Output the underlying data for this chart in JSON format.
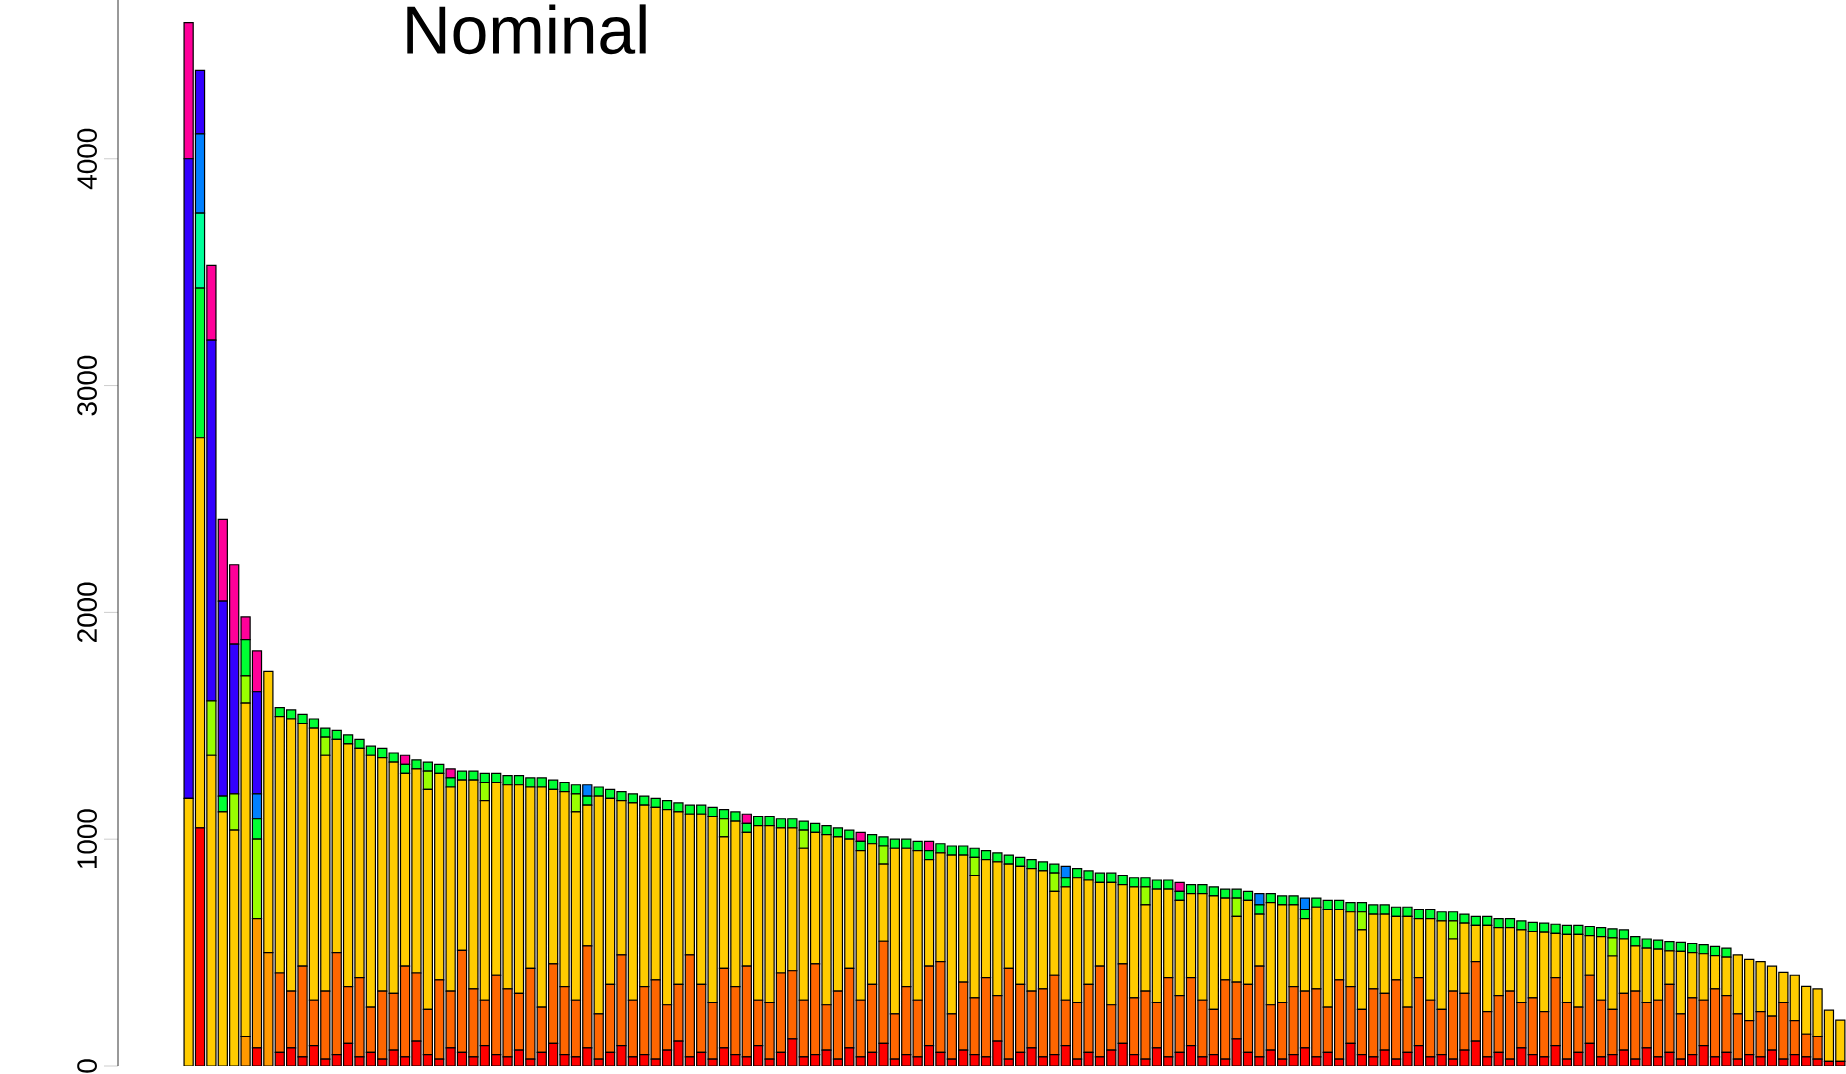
{
  "chart_data": {
    "type": "bar",
    "title": "Nominal",
    "stacked": true,
    "tick_labels": "y",
    "categories": [
      null,
      null,
      null,
      null,
      null,
      null,
      null,
      null,
      null,
      null,
      null,
      null,
      null,
      null,
      null,
      null,
      null,
      null,
      null,
      null,
      null,
      null,
      null,
      null,
      null,
      null,
      null,
      null,
      null,
      null,
      null,
      null,
      null,
      null,
      null,
      null,
      null,
      null,
      null,
      null,
      null,
      null,
      null,
      null,
      null,
      null,
      null,
      null,
      null,
      null,
      null,
      null,
      null,
      null,
      null,
      null,
      null,
      null,
      null,
      null,
      null,
      null,
      null,
      null,
      null,
      null,
      null,
      null,
      null,
      null,
      null,
      null,
      null,
      null,
      null,
      null,
      null,
      null,
      null,
      null,
      null,
      null,
      null,
      null,
      null,
      null,
      null,
      null,
      null,
      null,
      null,
      null,
      null,
      null,
      null,
      null,
      null,
      null,
      null,
      null,
      null,
      null,
      null,
      null,
      null,
      null,
      null,
      null,
      null,
      null,
      null,
      null,
      null,
      null,
      null,
      null,
      null,
      null,
      null,
      null,
      null,
      null,
      null,
      null,
      null,
      null,
      null,
      null,
      null,
      null,
      null,
      null,
      null,
      null,
      null,
      null,
      null,
      null,
      null,
      null,
      null,
      null,
      null,
      null,
      null,
      null
    ],
    "ylim": [
      0,
      4700
    ],
    "yticks": [
      0,
      1000,
      2000,
      3000,
      4000
    ],
    "series": [
      {
        "color": "#ff0000",
        "values": [
          0,
          1050,
          0,
          0,
          0,
          0,
          80,
          0,
          60,
          80,
          40,
          90,
          30,
          50,
          100,
          40,
          60,
          30,
          70,
          40,
          110,
          50,
          30,
          80,
          60,
          40,
          90,
          50,
          40,
          70,
          30,
          60,
          100,
          50,
          40,
          80,
          30,
          60,
          90,
          40,
          50,
          30,
          70,
          110,
          40,
          60,
          30,
          80,
          50,
          40,
          90,
          30,
          60,
          120,
          40,
          50,
          70,
          30,
          80,
          40,
          60,
          100,
          30,
          50,
          40,
          90,
          60,
          30,
          70,
          50,
          40,
          110,
          30,
          60,
          80,
          40,
          50,
          90,
          30,
          60,
          40,
          70,
          100,
          50,
          30,
          80,
          40,
          60,
          90,
          40,
          50,
          30,
          120,
          60,
          40,
          70,
          30,
          50,
          80,
          40,
          60,
          30,
          100,
          50,
          40,
          70,
          30,
          60,
          90,
          40,
          50,
          30,
          70,
          110,
          40,
          60,
          30,
          80,
          50,
          40,
          90,
          30,
          60,
          100,
          40,
          50,
          70,
          30,
          80,
          40,
          60,
          30,
          50,
          90,
          40,
          60,
          30,
          50,
          40,
          70,
          30,
          50,
          40,
          30,
          20,
          20
        ]
      },
      {
        "color": "#ff6600",
        "values": [
          0,
          0,
          0,
          0,
          0,
          0,
          0,
          0,
          350,
          250,
          400,
          200,
          300,
          450,
          250,
          350,
          200,
          300,
          250,
          400,
          300,
          200,
          350,
          250,
          450,
          300,
          200,
          350,
          300,
          250,
          400,
          200,
          350,
          300,
          250,
          450,
          200,
          300,
          400,
          250,
          300,
          350,
          200,
          250,
          450,
          300,
          250,
          350,
          300,
          400,
          200,
          250,
          350,
          300,
          250,
          400,
          200,
          300,
          350,
          250,
          300,
          450,
          200,
          300,
          250,
          350,
          400,
          200,
          300,
          250,
          350,
          200,
          400,
          300,
          250,
          300,
          350,
          200,
          250,
          300,
          400,
          200,
          350,
          250,
          300,
          200,
          350,
          250,
          300,
          250,
          200,
          350,
          250,
          300,
          400,
          200,
          250,
          300,
          250,
          300,
          200,
          350,
          250,
          200,
          300,
          250,
          350,
          200,
          300,
          250,
          200,
          300,
          250,
          350,
          200,
          250,
          300,
          200,
          250,
          200,
          300,
          250,
          200,
          300,
          250,
          200,
          250,
          300,
          200,
          250,
          300,
          200,
          250,
          200,
          300,
          250,
          200,
          150,
          200,
          150,
          250,
          150,
          100,
          100,
          0,
          0
        ]
      },
      {
        "color": "#ff9900",
        "values": [
          0,
          0,
          0,
          0,
          0,
          130,
          570,
          500,
          0,
          0,
          0,
          0,
          0,
          0,
          0,
          0,
          0,
          0,
          0,
          0,
          0,
          0,
          0,
          0,
          0,
          0,
          0,
          0,
          0,
          0,
          0,
          0,
          0,
          0,
          0,
          0,
          0,
          0,
          0,
          0,
          0,
          0,
          0,
          0,
          0,
          0,
          0,
          0,
          0,
          0,
          0,
          0,
          0,
          0,
          0,
          0,
          0,
          0,
          0,
          0,
          0,
          0,
          0,
          0,
          0,
          0,
          0,
          0,
          0,
          0,
          0,
          0,
          0,
          0,
          0,
          0,
          0,
          0,
          0,
          0,
          0,
          0,
          0,
          0,
          0,
          0,
          0,
          0,
          0,
          0,
          0,
          0,
          0,
          0,
          0,
          0,
          0,
          0,
          0,
          0,
          0,
          0,
          0,
          0,
          0,
          0,
          0,
          0,
          0,
          0,
          0,
          0,
          0,
          0,
          0,
          0,
          0,
          0,
          0,
          0,
          0,
          0,
          0,
          0,
          0,
          0,
          0,
          0,
          0,
          0,
          0,
          0,
          0,
          0,
          0,
          0,
          0,
          0,
          0,
          0,
          0,
          0,
          0,
          0,
          0,
          0
        ]
      },
      {
        "color": "#ffcc00",
        "values": [
          1180,
          1720,
          1370,
          1120,
          1040,
          1470,
          0,
          1240,
          1130,
          1200,
          1070,
          1200,
          1040,
          940,
          1070,
          1010,
          1110,
          1030,
          1020,
          850,
          900,
          970,
          910,
          900,
          750,
          920,
          880,
          850,
          900,
          920,
          800,
          970,
          770,
          860,
          830,
          620,
          960,
          820,
          680,
          870,
          800,
          760,
          860,
          760,
          620,
          750,
          820,
          580,
          730,
          590,
          770,
          780,
          640,
          630,
          670,
          580,
          750,
          680,
          570,
          660,
          620,
          340,
          730,
          610,
          660,
          470,
          480,
          700,
          560,
          540,
          520,
          590,
          460,
          520,
          540,
          520,
          370,
          500,
          550,
          460,
          370,
          540,
          350,
          490,
          380,
          500,
          390,
          420,
          370,
          470,
          500,
          360,
          290,
          370,
          230,
          450,
          430,
          360,
          320,
          360,
          430,
          310,
          330,
          350,
          330,
          350,
          280,
          400,
          260,
          360,
          390,
          230,
          310,
          160,
          380,
          300,
          280,
          320,
          293,
          350,
          195,
          300,
          320,
          175,
          280,
          235,
          240,
          200,
          240,
          225,
          148,
          275,
          200,
          205,
          147,
          170,
          260,
          270,
          220,
          220,
          133,
          200,
          211,
          210,
          226,
          182
        ]
      },
      {
        "color": "#99ff00",
        "values": [
          0,
          0,
          240,
          0,
          160,
          120,
          350,
          0,
          0,
          0,
          0,
          0,
          80,
          0,
          0,
          0,
          0,
          0,
          0,
          0,
          0,
          80,
          0,
          0,
          0,
          0,
          80,
          0,
          0,
          0,
          0,
          0,
          0,
          0,
          80,
          0,
          0,
          0,
          0,
          0,
          0,
          0,
          0,
          0,
          0,
          0,
          0,
          80,
          0,
          0,
          0,
          0,
          0,
          0,
          80,
          0,
          0,
          0,
          0,
          0,
          0,
          80,
          0,
          0,
          0,
          0,
          0,
          0,
          0,
          80,
          0,
          0,
          0,
          0,
          0,
          0,
          80,
          0,
          0,
          0,
          0,
          0,
          0,
          0,
          80,
          0,
          0,
          0,
          0,
          0,
          0,
          0,
          80,
          0,
          0,
          0,
          0,
          0,
          0,
          0,
          0,
          0,
          0,
          80,
          0,
          0,
          0,
          0,
          0,
          0,
          0,
          80,
          0,
          0,
          0,
          0,
          0,
          0,
          0,
          0,
          0,
          0,
          0,
          0,
          0,
          80,
          0,
          0,
          0,
          0,
          0,
          0,
          0,
          0,
          0,
          0,
          0,
          0,
          0,
          0,
          0,
          0,
          0,
          0,
          0,
          0
        ]
      },
      {
        "color": "#00ff33",
        "values": [
          0,
          660,
          0,
          70,
          0,
          160,
          90,
          0,
          40,
          40,
          40,
          40,
          40,
          40,
          40,
          40,
          40,
          40,
          40,
          40,
          40,
          40,
          40,
          40,
          40,
          40,
          40,
          40,
          40,
          40,
          40,
          40,
          40,
          40,
          40,
          40,
          40,
          40,
          40,
          40,
          40,
          40,
          40,
          40,
          40,
          40,
          40,
          40,
          40,
          40,
          40,
          40,
          40,
          40,
          40,
          40,
          40,
          40,
          40,
          40,
          40,
          40,
          40,
          40,
          40,
          40,
          40,
          40,
          40,
          40,
          40,
          40,
          40,
          40,
          40,
          40,
          40,
          40,
          40,
          40,
          40,
          40,
          40,
          40,
          40,
          40,
          40,
          40,
          40,
          40,
          40,
          40,
          40,
          40,
          40,
          40,
          40,
          40,
          40,
          40,
          40,
          40,
          40,
          40,
          40,
          40,
          40,
          40,
          40,
          40,
          40,
          40,
          40,
          40,
          40,
          40,
          40,
          40,
          40,
          40,
          40,
          40,
          40,
          40,
          40,
          40,
          40,
          40,
          40,
          40,
          40,
          40,
          40,
          40,
          40,
          40,
          0,
          0,
          0,
          0,
          0,
          0,
          0,
          0,
          0,
          0
        ]
      },
      {
        "color": "#00ff99",
        "values": [
          0,
          330,
          0,
          0,
          0,
          0,
          0,
          0,
          0,
          0,
          0,
          0,
          0,
          0,
          0,
          0,
          0,
          0,
          0,
          0,
          0,
          0,
          0,
          0,
          0,
          0,
          0,
          0,
          0,
          0,
          0,
          0,
          0,
          0,
          0,
          0,
          0,
          0,
          0,
          0,
          0,
          0,
          0,
          0,
          0,
          0,
          0,
          0,
          0,
          0,
          0,
          0,
          0,
          0,
          0,
          0,
          0,
          0,
          0,
          0,
          0,
          0,
          0,
          0,
          0,
          0,
          0,
          0,
          0,
          0,
          0,
          0,
          0,
          0,
          0,
          0,
          0,
          0,
          0,
          0,
          0,
          0,
          0,
          0,
          0,
          0,
          0,
          0,
          0,
          0,
          0,
          0,
          0,
          0,
          0,
          0,
          0,
          0,
          0,
          0,
          0,
          0,
          0,
          0,
          0,
          0,
          0,
          0,
          0,
          0,
          0,
          0,
          0,
          0,
          0,
          0,
          0,
          0,
          0,
          0,
          0,
          0,
          0,
          0,
          0,
          0,
          0,
          0,
          0,
          0,
          0,
          0,
          0,
          0,
          0,
          0,
          0,
          0,
          0,
          0,
          0,
          0,
          0,
          0,
          0,
          0
        ]
      },
      {
        "color": "#0080ff",
        "values": [
          0,
          350,
          0,
          0,
          0,
          0,
          110,
          0,
          0,
          0,
          0,
          0,
          0,
          0,
          0,
          0,
          0,
          0,
          0,
          0,
          0,
          0,
          0,
          0,
          0,
          0,
          0,
          0,
          0,
          0,
          0,
          0,
          0,
          0,
          0,
          50,
          0,
          0,
          0,
          0,
          0,
          0,
          0,
          0,
          0,
          0,
          0,
          0,
          0,
          0,
          0,
          0,
          0,
          0,
          0,
          0,
          0,
          0,
          0,
          0,
          0,
          0,
          0,
          0,
          0,
          0,
          0,
          0,
          0,
          0,
          0,
          0,
          0,
          0,
          0,
          0,
          0,
          50,
          0,
          0,
          0,
          0,
          0,
          0,
          0,
          0,
          0,
          0,
          0,
          0,
          0,
          0,
          0,
          0,
          50,
          0,
          0,
          0,
          50,
          0,
          0,
          0,
          0,
          0,
          0,
          0,
          0,
          0,
          0,
          0,
          0,
          0,
          0,
          0,
          0,
          0,
          0,
          0,
          0,
          0,
          0,
          0,
          0,
          0,
          0,
          0,
          0,
          0,
          0,
          0,
          0,
          0,
          0,
          0,
          0,
          0,
          0,
          0,
          0,
          0,
          0,
          0,
          0,
          0,
          0,
          0
        ]
      },
      {
        "color": "#3300ff",
        "values": [
          2820,
          280,
          1590,
          860,
          660,
          0,
          450,
          0,
          0,
          0,
          0,
          0,
          0,
          0,
          0,
          0,
          0,
          0,
          0,
          0,
          0,
          0,
          0,
          0,
          0,
          0,
          0,
          0,
          0,
          0,
          0,
          0,
          0,
          0,
          0,
          0,
          0,
          0,
          0,
          0,
          0,
          0,
          0,
          0,
          0,
          0,
          0,
          0,
          0,
          0,
          0,
          0,
          0,
          0,
          0,
          0,
          0,
          0,
          0,
          0,
          0,
          0,
          0,
          0,
          0,
          0,
          0,
          0,
          0,
          0,
          0,
          0,
          0,
          0,
          0,
          0,
          0,
          0,
          0,
          0,
          0,
          0,
          0,
          0,
          0,
          0,
          0,
          0,
          0,
          0,
          0,
          0,
          0,
          0,
          0,
          0,
          0,
          0,
          0,
          0,
          0,
          0,
          0,
          0,
          0,
          0,
          0,
          0,
          0,
          0,
          0,
          0,
          0,
          0,
          0,
          0,
          0,
          0,
          0,
          0,
          0,
          0,
          0,
          0,
          0,
          0,
          0,
          0,
          0,
          0,
          0,
          0,
          0,
          0,
          0,
          0,
          0,
          0,
          0,
          0,
          0,
          0,
          0,
          0,
          0,
          0
        ]
      },
      {
        "color": "#ff0099",
        "values": [
          600,
          0,
          330,
          360,
          350,
          100,
          180,
          0,
          0,
          0,
          0,
          0,
          0,
          0,
          0,
          0,
          0,
          0,
          0,
          40,
          0,
          0,
          0,
          40,
          0,
          0,
          0,
          0,
          0,
          0,
          0,
          0,
          0,
          0,
          0,
          0,
          0,
          0,
          0,
          0,
          0,
          0,
          0,
          0,
          0,
          0,
          0,
          0,
          0,
          40,
          0,
          0,
          0,
          0,
          0,
          0,
          0,
          0,
          0,
          40,
          0,
          0,
          0,
          0,
          0,
          40,
          0,
          0,
          0,
          0,
          0,
          0,
          0,
          0,
          0,
          0,
          0,
          0,
          0,
          0,
          0,
          0,
          0,
          0,
          0,
          0,
          0,
          40,
          0,
          0,
          0,
          0,
          0,
          0,
          0,
          0,
          0,
          0,
          0,
          0,
          0,
          0,
          0,
          0,
          0,
          0,
          0,
          0,
          0,
          0,
          0,
          0,
          0,
          0,
          0,
          0,
          0,
          0,
          0,
          0,
          0,
          0,
          0,
          0,
          0,
          0,
          0,
          0,
          0,
          0,
          0,
          0,
          0,
          0,
          0,
          0,
          0,
          0,
          0,
          0,
          0,
          0,
          0,
          0,
          0,
          0
        ]
      }
    ]
  }
}
